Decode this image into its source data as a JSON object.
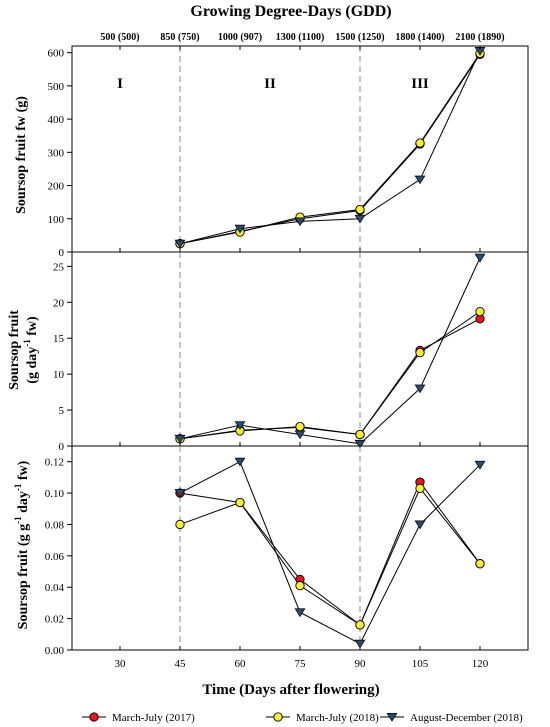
{
  "chart_data": [
    {
      "type": "line",
      "panel": "fresh-weight",
      "title": "Growing Degree-Days (GDD)",
      "top_ticks": [
        "500 (500)",
        "850 (750)",
        "1000 (907)",
        "1300 (1100)",
        "1500 (1250)",
        "1800 (1400)",
        "2100 (1890)"
      ],
      "phase_labels": [
        "I",
        "II",
        "III"
      ],
      "phase_boundaries": [
        45,
        90
      ],
      "ylabel": "Soursop fruit fw (g)",
      "ylim": [
        0,
        620
      ],
      "yticks": [
        "0",
        "100",
        "200",
        "300",
        "400",
        "500",
        "600"
      ],
      "x": [
        45,
        60,
        75,
        90,
        105,
        120
      ],
      "series": [
        {
          "name": "March-July (2017)",
          "values": [
            25,
            62,
            100,
            125,
            325,
            595
          ]
        },
        {
          "name": "March-July (2018)",
          "values": [
            25,
            60,
            105,
            128,
            328,
            598
          ]
        },
        {
          "name": "August-December (2018)",
          "values": [
            25,
            70,
            92,
            100,
            218,
            605
          ]
        }
      ]
    },
    {
      "type": "line",
      "panel": "absolute-growth-rate",
      "ylabel_line1": "Soursop fruit",
      "ylabel_line2": "(g day",
      "ylabel_sup": "-1",
      "ylabel_tail": " fw)",
      "ylim": [
        0,
        27
      ],
      "yticks": [
        "0",
        "5",
        "10",
        "15",
        "20",
        "25"
      ],
      "x": [
        45,
        60,
        75,
        90,
        105,
        120
      ],
      "series": [
        {
          "name": "March-July (2017)",
          "values": [
            1.0,
            2.2,
            2.6,
            1.6,
            13.3,
            17.7
          ]
        },
        {
          "name": "March-July (2018)",
          "values": [
            1.0,
            2.1,
            2.7,
            1.6,
            13.0,
            18.7
          ]
        },
        {
          "name": "August-December (2018)",
          "values": [
            1.0,
            2.9,
            1.6,
            0.3,
            8.0,
            26.2
          ]
        }
      ]
    },
    {
      "type": "line",
      "panel": "relative-growth-rate",
      "ylabel_a": "Soursop fruit (g g",
      "ylabel_sup1": "-1",
      "ylabel_b": " day",
      "ylabel_sup2": "-1",
      "ylabel_c": " fw)",
      "ylim": [
        0,
        0.13
      ],
      "yticks": [
        "0.00",
        "0.02",
        "0.04",
        "0.06",
        "0.08",
        "0.10",
        "0.12"
      ],
      "x": [
        45,
        60,
        75,
        90,
        105,
        120
      ],
      "series": [
        {
          "name": "March-July (2017)",
          "values": [
            0.1,
            0.094,
            0.045,
            0.016,
            0.107,
            0.055
          ]
        },
        {
          "name": "March-July (2018)",
          "values": [
            0.08,
            0.094,
            0.041,
            0.016,
            0.103,
            0.055
          ]
        },
        {
          "name": "August-December (2018)",
          "values": [
            0.1,
            0.12,
            0.024,
            0.004,
            0.08,
            0.118
          ]
        }
      ]
    }
  ],
  "x_axis": {
    "label": "Time (Days after flowering)",
    "ticks": [
      30,
      45,
      60,
      75,
      90,
      105,
      120
    ],
    "range": [
      18,
      132
    ]
  },
  "legend": {
    "position": "bottom",
    "items": [
      {
        "label": "March-July (2017)",
        "marker": "circle",
        "fill": "#e8141b"
      },
      {
        "label": "March-July (2018)",
        "marker": "circle",
        "fill": "#f8ef3a"
      },
      {
        "label": "August-December (2018)",
        "marker": "triangle-down",
        "fill": "#2c4a6e"
      }
    ]
  },
  "colors": {
    "march_july_2017": "#e8141b",
    "march_july_2018": "#f8ef3a",
    "august_december_2018": "#2c4a6e",
    "line": "#000000",
    "phase_divider": "#888888"
  }
}
